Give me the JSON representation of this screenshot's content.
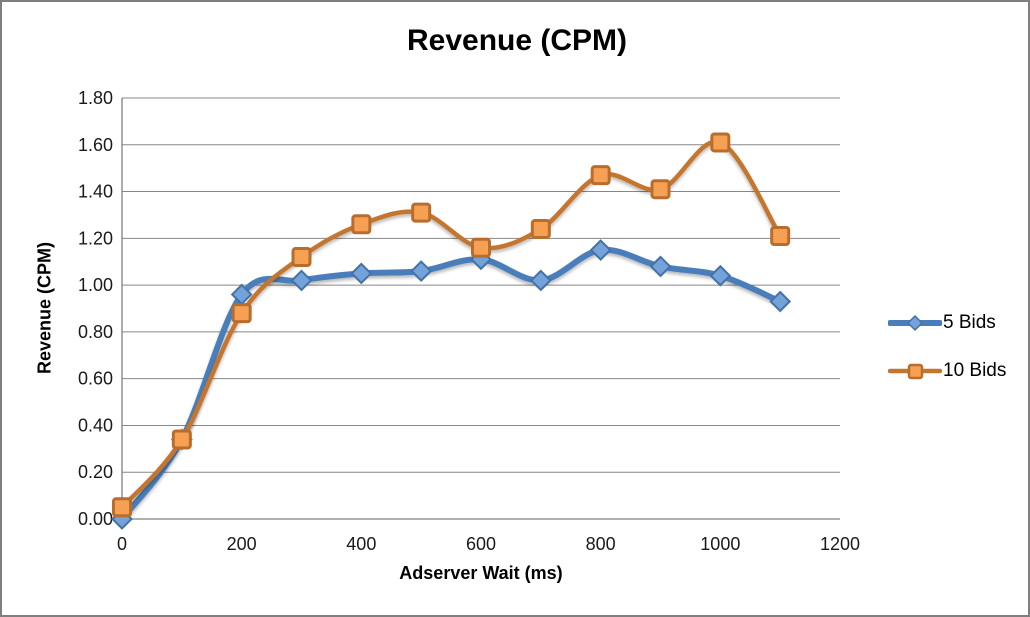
{
  "frame": {
    "border_color": "#7f7f7f",
    "background_color": "#ffffff"
  },
  "chart_data": {
    "type": "line",
    "title": "Revenue (CPM)",
    "xlabel": "Adserver Wait (ms)",
    "ylabel": "Revenue (CPM)",
    "x": [
      0,
      100,
      200,
      300,
      400,
      500,
      600,
      700,
      800,
      900,
      1000,
      1100
    ],
    "series": [
      {
        "name": "5 Bids",
        "values": [
          0.0,
          0.34,
          0.96,
          1.02,
          1.05,
          1.06,
          1.11,
          1.02,
          1.15,
          1.08,
          1.04,
          0.93
        ],
        "line_color": "#4a7ebb",
        "line_width": 6,
        "marker": "diamond",
        "marker_fill": "#74a2db",
        "marker_stroke": "#4472a4"
      },
      {
        "name": "10 Bids",
        "values": [
          0.05,
          0.34,
          0.88,
          1.12,
          1.26,
          1.31,
          1.16,
          1.24,
          1.47,
          1.41,
          1.61,
          1.21
        ],
        "line_color": "#c4762f",
        "line_width": 4.5,
        "marker": "square",
        "marker_fill": "#f5a053",
        "marker_stroke": "#b96d2c"
      }
    ],
    "xlim": [
      0,
      1200
    ],
    "ylim": [
      0,
      1.8
    ],
    "x_tick_labels": [
      "0",
      "200",
      "400",
      "600",
      "800",
      "1000",
      "1200"
    ],
    "x_tick_values": [
      0,
      200,
      400,
      600,
      800,
      1000,
      1200
    ],
    "y_tick_labels": [
      "0.00",
      "0.20",
      "0.40",
      "0.60",
      "0.80",
      "1.00",
      "1.20",
      "1.40",
      "1.60",
      "1.80"
    ],
    "y_tick_values": [
      0,
      0.2,
      0.4,
      0.6,
      0.8,
      1.0,
      1.2,
      1.4,
      1.6,
      1.8
    ],
    "grid": true,
    "smoothed_lines": true,
    "legend_position": "right",
    "gridline_color": "#878787",
    "axis_color": "#808080",
    "tick_text_color": "#1a1a1a"
  }
}
